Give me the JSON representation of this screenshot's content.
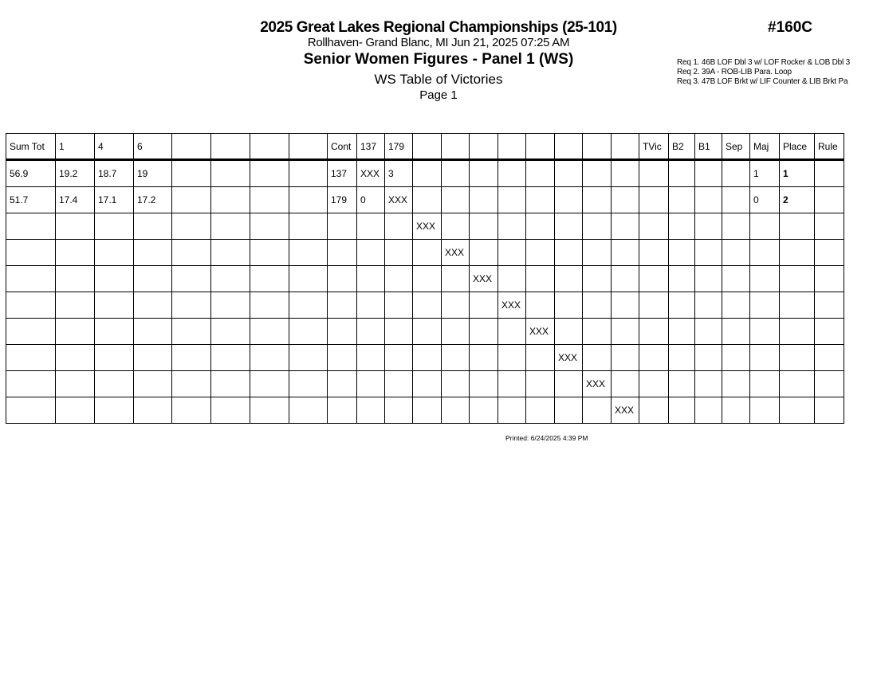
{
  "header": {
    "title": "2025 Great Lakes Regional Championships (25-101)",
    "location": "Rollhaven- Grand Blanc, MI  Jun 21, 2025  07:25 AM",
    "event": "Senior Women Figures - Panel 1 (WS)",
    "subtitle": "WS Table of Victories",
    "page": "Page 1",
    "code": "#160C"
  },
  "requirements": [
    "Req  1.  46B LOF Dbl 3 w/ LOF Rocker & LOB Dbl 3",
    "Req  2.  39A - ROB-LIB Para. Loop",
    "Req  3.  47B LOF Brkt w/ LIF Counter & LIB Brkt Pa"
  ],
  "table": {
    "columns": [
      "Sum Tot",
      " 1",
      " 4",
      " 6",
      "",
      "",
      "",
      "",
      "Cont",
      "137",
      "179",
      "",
      "",
      "",
      "",
      "",
      "",
      "",
      "",
      "TVic",
      "B2",
      "B1",
      "Sep",
      "Maj",
      "Place",
      "Rule"
    ],
    "rows": [
      [
        "56.9",
        "19.2",
        "18.7",
        " 19",
        "",
        "",
        "",
        "",
        "137",
        "XXX",
        " 3",
        "",
        "",
        "",
        "",
        "",
        "",
        "",
        "",
        "",
        "",
        "",
        "",
        " 1",
        " 1",
        ""
      ],
      [
        "51.7",
        "17.4",
        "17.1",
        "17.2",
        "",
        "",
        "",
        "",
        "179",
        " 0",
        "XXX",
        "",
        "",
        "",
        "",
        "",
        "",
        "",
        "",
        "",
        "",
        "",
        "",
        " 0",
        " 2",
        ""
      ],
      [
        "",
        "",
        "",
        "",
        "",
        "",
        "",
        "",
        "",
        "",
        "",
        "XXX",
        "",
        "",
        "",
        "",
        "",
        "",
        "",
        "",
        "",
        "",
        "",
        "",
        "",
        ""
      ],
      [
        "",
        "",
        "",
        "",
        "",
        "",
        "",
        "",
        "",
        "",
        "",
        "",
        "XXX",
        "",
        "",
        "",
        "",
        "",
        "",
        "",
        "",
        "",
        "",
        "",
        "",
        ""
      ],
      [
        "",
        "",
        "",
        "",
        "",
        "",
        "",
        "",
        "",
        "",
        "",
        "",
        "",
        "XXX",
        "",
        "",
        "",
        "",
        "",
        "",
        "",
        "",
        "",
        "",
        "",
        ""
      ],
      [
        "",
        "",
        "",
        "",
        "",
        "",
        "",
        "",
        "",
        "",
        "",
        "",
        "",
        "",
        "XXX",
        "",
        "",
        "",
        "",
        "",
        "",
        "",
        "",
        "",
        "",
        ""
      ],
      [
        "",
        "",
        "",
        "",
        "",
        "",
        "",
        "",
        "",
        "",
        "",
        "",
        "",
        "",
        "",
        "XXX",
        "",
        "",
        "",
        "",
        "",
        "",
        "",
        "",
        "",
        ""
      ],
      [
        "",
        "",
        "",
        "",
        "",
        "",
        "",
        "",
        "",
        "",
        "",
        "",
        "",
        "",
        "",
        "",
        "XXX",
        "",
        "",
        "",
        "",
        "",
        "",
        "",
        "",
        ""
      ],
      [
        "",
        "",
        "",
        "",
        "",
        "",
        "",
        "",
        "",
        "",
        "",
        "",
        "",
        "",
        "",
        "",
        "",
        "XXX",
        "",
        "",
        "",
        "",
        "",
        "",
        "",
        ""
      ],
      [
        "",
        "",
        "",
        "",
        "",
        "",
        "",
        "",
        "",
        "",
        "",
        "",
        "",
        "",
        "",
        "",
        "",
        "",
        "XXX",
        "",
        "",
        "",
        "",
        "",
        "",
        ""
      ]
    ]
  },
  "footer": {
    "printed": "Printed:  6/24/2025  4:39 PM"
  }
}
